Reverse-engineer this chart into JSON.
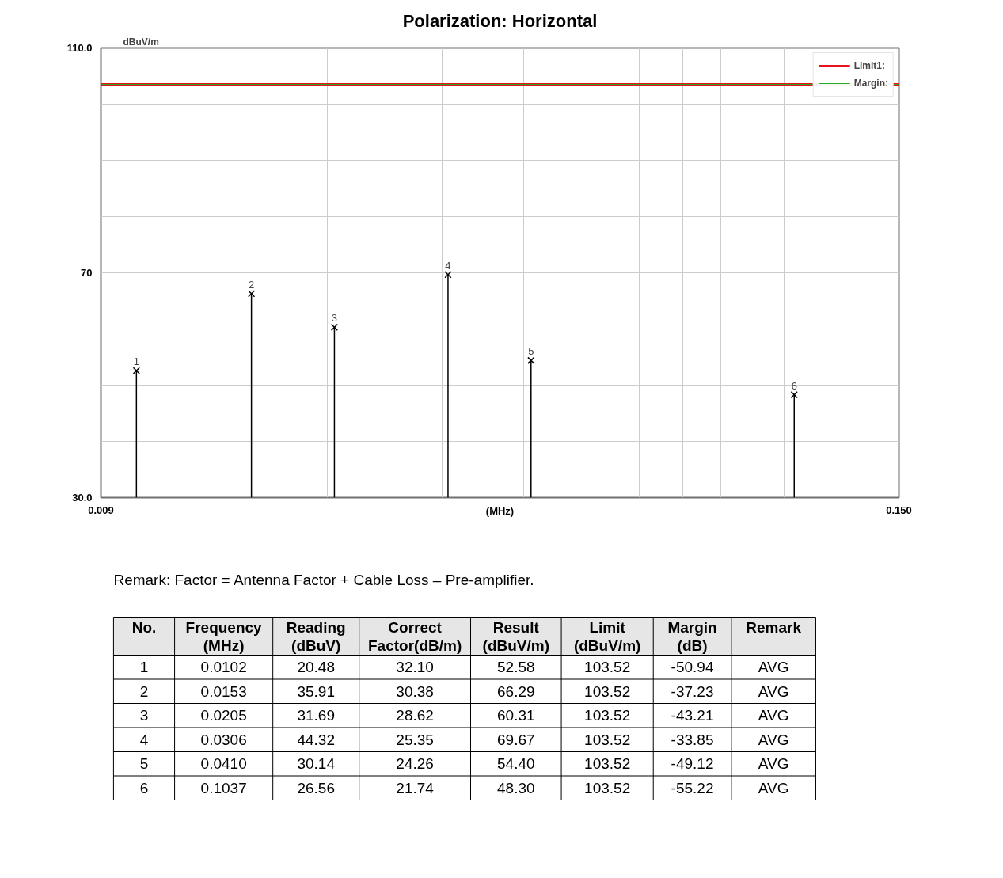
{
  "chart_data": {
    "type": "lollipop",
    "title": "Polarization: Horizontal",
    "xlabel": "(MHz)",
    "ylabel": "dBuV/m",
    "log": "x",
    "x": [
      0.0102,
      0.0153,
      0.0205,
      0.0306,
      0.041,
      0.1037
    ],
    "series": [
      {
        "color": "#000000",
        "values": [
          52.58,
          66.29,
          60.31,
          69.67,
          54.4,
          48.3
        ]
      }
    ],
    "ref_lines": [
      {
        "axis": "y",
        "value": 103.52,
        "label": "Limit1:",
        "color": "#e8121a"
      },
      {
        "axis": "y",
        "value": 103.52,
        "label": "Margin:",
        "color": "#22aa22"
      }
    ],
    "xlim": [
      0.009,
      0.15
    ],
    "ylim": [
      30,
      110
    ],
    "xticks": [
      {
        "value": 0.009,
        "label": "0.009"
      },
      {
        "value": 0.01,
        "label": null
      },
      {
        "value": 0.02,
        "label": null
      },
      {
        "value": 0.03,
        "label": null
      },
      {
        "value": 0.04,
        "label": null
      },
      {
        "value": 0.05,
        "label": null
      },
      {
        "value": 0.06,
        "label": null
      },
      {
        "value": 0.07,
        "label": null
      },
      {
        "value": 0.08,
        "label": null
      },
      {
        "value": 0.09,
        "label": null
      },
      {
        "value": 0.1,
        "label": null
      },
      {
        "value": 0.15,
        "label": "0.150"
      }
    ],
    "yticks": [
      {
        "value": 30,
        "label": "30.0"
      },
      {
        "value": 40,
        "label": null
      },
      {
        "value": 50,
        "label": null
      },
      {
        "value": 60,
        "label": null
      },
      70,
      {
        "value": 80,
        "label": null
      },
      {
        "value": 90,
        "label": null
      },
      {
        "value": 100,
        "label": null
      },
      {
        "value": 110,
        "label": "110.0"
      }
    ],
    "grid": true,
    "legend": "top right",
    "marker": "cross",
    "line_style": "solid",
    "annotations": [
      {
        "text": "1",
        "x": 0.0102,
        "y": 52.58
      },
      {
        "text": "2",
        "x": 0.0153,
        "y": 66.29
      },
      {
        "text": "3",
        "x": 0.0205,
        "y": 60.31
      },
      {
        "text": "4",
        "x": 0.0306,
        "y": 69.67
      },
      {
        "text": "5",
        "x": 0.041,
        "y": 54.4
      },
      {
        "text": "6",
        "x": 0.1037,
        "y": 48.3
      },
      "Remark: Factor = Antenna Factor + Cable Loss – Pre-amplifier.",
      "No.",
      "Frequency\n(MHz)",
      "Reading\n(dBuV)",
      "Correct\nFactor(dB/m)",
      "Result\n(dBuV/m)",
      "Limit\n(dBuV/m)",
      "Margin\n(dB)",
      "Remark",
      "1",
      "0.0102",
      "20.48",
      "32.10",
      "52.58",
      "103.52",
      "-50.94",
      "AVG",
      "2",
      "0.0153",
      "35.91",
      "30.38",
      "66.29",
      "103.52",
      "-37.23",
      "AVG",
      "3",
      "0.0205",
      "31.69",
      "28.62",
      "60.31",
      "103.52",
      "-43.21",
      "AVG",
      "4",
      "0.0306",
      "44.32",
      "25.35",
      "69.67",
      "103.52",
      "-33.85",
      "AVG",
      "5",
      "0.0410",
      "30.14",
      "24.26",
      "54.40",
      "103.52",
      "-49.12",
      "AVG",
      "6",
      "0.1037",
      "26.56",
      "21.74",
      "48.30",
      "103.52",
      "-55.22",
      "AVG"
    ]
  }
}
